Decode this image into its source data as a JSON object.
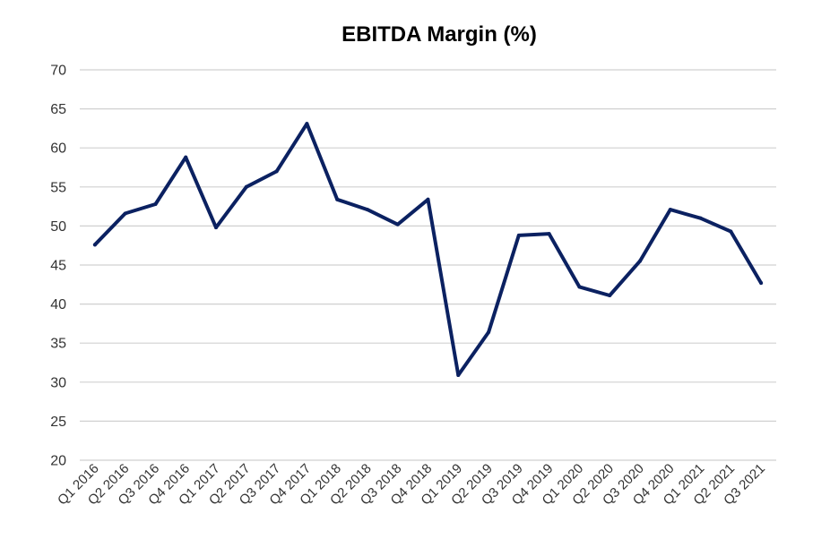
{
  "chart_data": {
    "type": "line",
    "title": "EBITDA Margin (%)",
    "xlabel": "",
    "ylabel": "",
    "ylim": [
      20,
      70
    ],
    "yticks": [
      20,
      25,
      30,
      35,
      40,
      45,
      50,
      55,
      60,
      65,
      70
    ],
    "grid": true,
    "legend": "none",
    "categories": [
      "Q1 2016",
      "Q2 2016",
      "Q3 2016",
      "Q4 2016",
      "Q1 2017",
      "Q2 2017",
      "Q3 2017",
      "Q4 2017",
      "Q1 2018",
      "Q2 2018",
      "Q3 2018",
      "Q4 2018",
      "Q1 2019",
      "Q2 2019",
      "Q3 2019",
      "Q4 2019",
      "Q1 2020",
      "Q2 2020",
      "Q3 2020",
      "Q4 2020",
      "Q1 2021",
      "Q2 2021",
      "Q3 2021"
    ],
    "series": [
      {
        "color": "#0b2161",
        "values": [
          47.6,
          51.6,
          52.8,
          58.8,
          49.8,
          55.0,
          57.0,
          63.1,
          53.4,
          52.1,
          50.2,
          53.4,
          30.9,
          36.4,
          48.8,
          49.0,
          42.2,
          41.1,
          45.5,
          52.1,
          51.0,
          49.3,
          42.7
        ]
      }
    ]
  }
}
